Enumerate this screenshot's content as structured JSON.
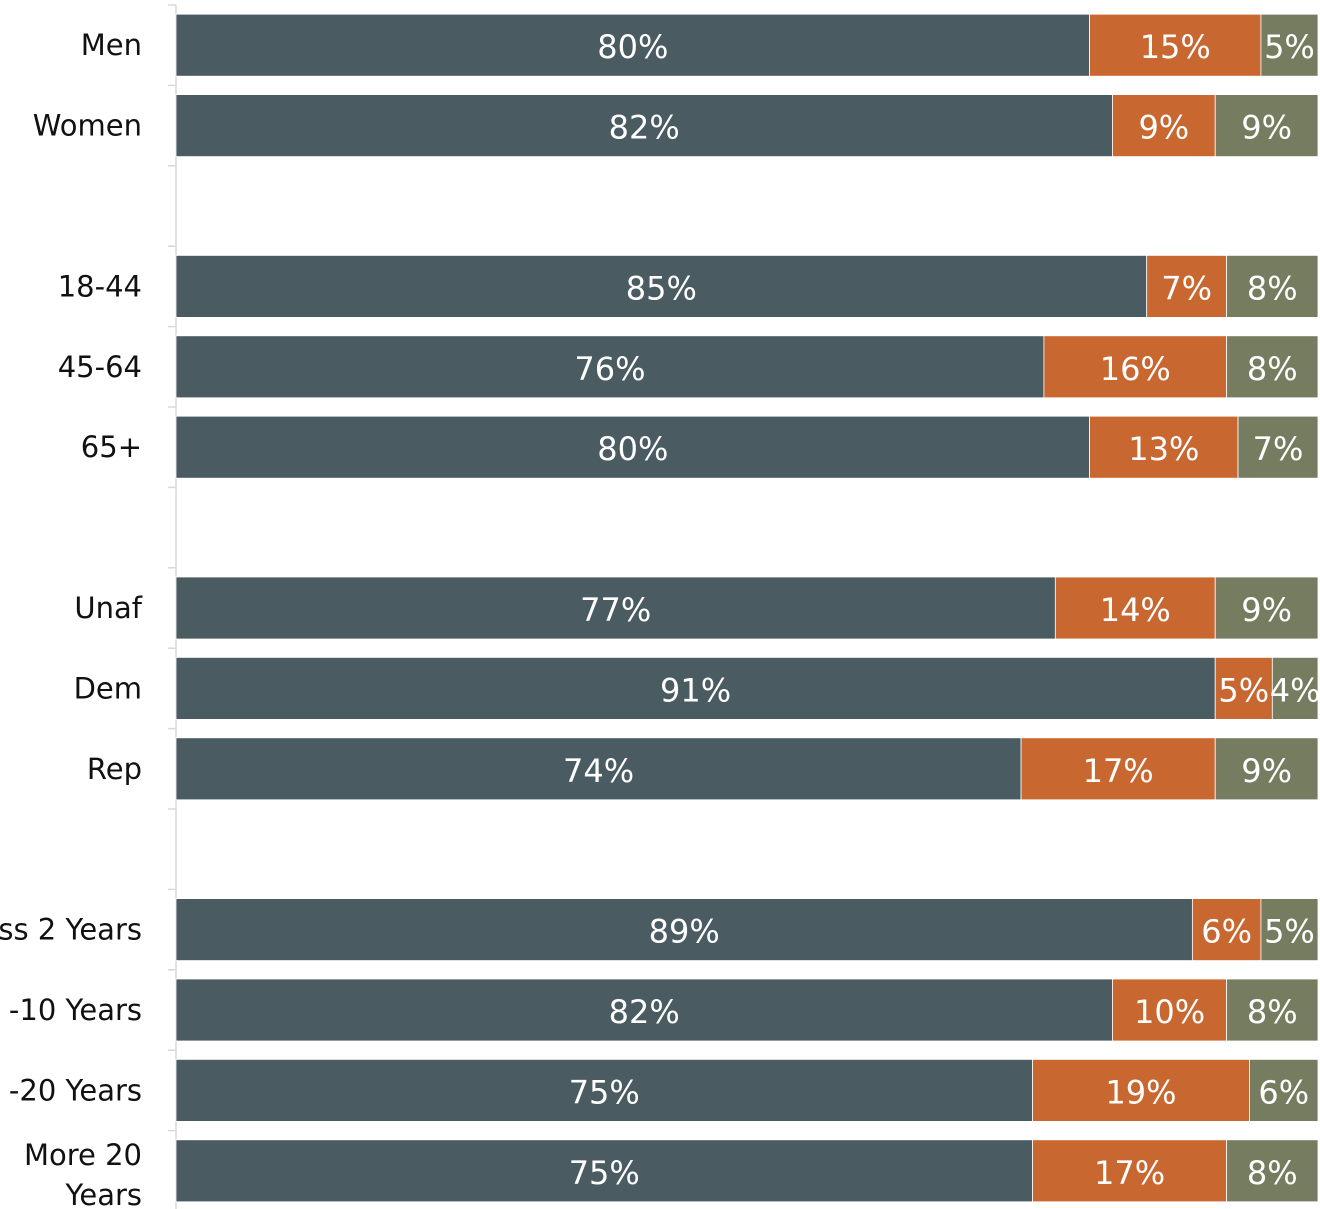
{
  "chart_data": {
    "type": "bar",
    "orientation": "horizontal",
    "stacked": true,
    "xlim": [
      0,
      100
    ],
    "grid": false,
    "colors": [
      "#4a5b62",
      "#c96731",
      "#767c5f"
    ],
    "categories": [
      [
        "Men"
      ],
      [
        "Women"
      ],
      null,
      [
        "18-44"
      ],
      [
        "45-64"
      ],
      [
        "65+"
      ],
      null,
      [
        "Unaf"
      ],
      [
        "Dem"
      ],
      [
        "Rep"
      ],
      null,
      [
        "ss 2 Years"
      ],
      [
        "-10 Years"
      ],
      [
        "-20 Years"
      ],
      [
        "More 20",
        "Years"
      ]
    ],
    "series": [
      {
        "values": [
          80,
          82,
          null,
          85,
          76,
          80,
          null,
          77,
          91,
          74,
          null,
          89,
          82,
          75,
          75
        ]
      },
      {
        "values": [
          15,
          9,
          null,
          7,
          16,
          13,
          null,
          14,
          5,
          17,
          null,
          6,
          10,
          19,
          17
        ]
      },
      {
        "values": [
          5,
          9,
          null,
          8,
          8,
          7,
          null,
          9,
          4,
          9,
          null,
          5,
          8,
          6,
          8
        ]
      }
    ],
    "value_suffix": "%"
  }
}
